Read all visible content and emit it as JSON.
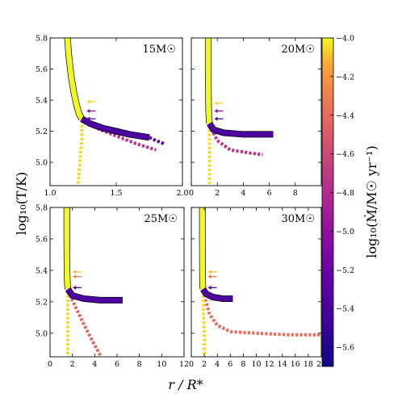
{
  "figure": {
    "ylabel": "log₁₀(T/K)",
    "xlabel": "r / R*",
    "colorbar": {
      "label": "log₁₀(Ṁ/M☉ yr⁻¹)",
      "colormap": "plasma",
      "range": [
        -5.7,
        -4.0
      ],
      "ticks": [
        -4.0,
        -4.2,
        -4.4,
        -4.6,
        -4.8,
        -5.0,
        -5.2,
        -5.4,
        -5.6
      ],
      "tick_labels": [
        "−4.0",
        "−4.2",
        "−4.4",
        "−4.6",
        "−4.8",
        "−5.0",
        "−5.2",
        "−5.4",
        "−5.6"
      ]
    }
  },
  "chart_data": [
    {
      "type": "line",
      "label": "15M☉",
      "xlim": [
        1.0,
        2.0
      ],
      "ylim": [
        4.85,
        5.8
      ],
      "xticks": [
        1.0,
        1.5,
        2.0
      ],
      "xtick_labels": [
        "1.0",
        "1.5",
        "2.0"
      ],
      "yticks": [
        5.0,
        5.2,
        5.4,
        5.6,
        5.8
      ],
      "ytick_labels": [
        "5.0",
        "5.2",
        "5.4",
        "5.6",
        "5.8"
      ],
      "series": [
        {
          "style": "solid-thick",
          "log_mdot": -4.0,
          "points": [
            [
              1.13,
              5.82
            ],
            [
              1.14,
              5.7
            ],
            [
              1.16,
              5.55
            ],
            [
              1.18,
              5.45
            ],
            [
              1.2,
              5.37
            ],
            [
              1.22,
              5.31
            ],
            [
              1.24,
              5.28
            ]
          ]
        },
        {
          "style": "solid-thick",
          "log_mdot": -5.4,
          "points": [
            [
              1.24,
              5.28
            ],
            [
              1.3,
              5.25
            ],
            [
              1.4,
              5.22
            ],
            [
              1.5,
              5.2
            ],
            [
              1.6,
              5.18
            ],
            [
              1.75,
              5.16
            ]
          ]
        },
        {
          "style": "dotted",
          "log_mdot": -5.4,
          "points": [
            [
              1.75,
              5.16
            ],
            [
              1.8,
              5.14
            ],
            [
              1.86,
              5.12
            ]
          ]
        },
        {
          "style": "dotted",
          "log_mdot": -4.75,
          "points": [
            [
              1.24,
              5.27
            ],
            [
              1.35,
              5.22
            ],
            [
              1.5,
              5.17
            ],
            [
              1.65,
              5.12
            ],
            [
              1.8,
              5.08
            ]
          ]
        },
        {
          "style": "dotted",
          "log_mdot": -4.05,
          "points": [
            [
              1.24,
              5.27
            ],
            [
              1.24,
              5.15
            ],
            [
              1.23,
              5.05
            ],
            [
              1.22,
              4.95
            ],
            [
              1.21,
              4.85
            ]
          ]
        }
      ],
      "arrows": [
        {
          "log_mdot": -4.05,
          "y": 5.39
        },
        {
          "log_mdot": -5.0,
          "y": 5.33
        },
        {
          "log_mdot": -5.4,
          "y": 5.28
        }
      ]
    },
    {
      "type": "line",
      "label": "20M☉",
      "xlim": [
        0.0,
        10.0
      ],
      "ylim": [
        4.85,
        5.8
      ],
      "xticks": [
        0,
        2,
        4,
        6,
        8
      ],
      "xtick_labels": [
        "0",
        "2",
        "4",
        "6",
        "8"
      ],
      "yticks": [
        5.0,
        5.2,
        5.4,
        5.6,
        5.8
      ],
      "ytick_labels": [
        "",
        "",
        "",
        "",
        ""
      ],
      "series": [
        {
          "style": "solid-thick",
          "log_mdot": -4.0,
          "points": [
            [
              1.3,
              5.82
            ],
            [
              1.3,
              5.6
            ],
            [
              1.32,
              5.4
            ],
            [
              1.35,
              5.3
            ],
            [
              1.4,
              5.25
            ]
          ]
        },
        {
          "style": "solid-thick",
          "log_mdot": -5.4,
          "points": [
            [
              1.4,
              5.25
            ],
            [
              1.7,
              5.21
            ],
            [
              2.5,
              5.19
            ],
            [
              4.0,
              5.18
            ],
            [
              6.3,
              5.18
            ]
          ]
        },
        {
          "style": "dotted",
          "log_mdot": -4.75,
          "points": [
            [
              1.4,
              5.24
            ],
            [
              2.0,
              5.14
            ],
            [
              3.0,
              5.08
            ],
            [
              4.5,
              5.06
            ],
            [
              5.5,
              5.05
            ]
          ]
        },
        {
          "style": "dotted",
          "log_mdot": -4.05,
          "points": [
            [
              1.4,
              5.24
            ],
            [
              1.4,
              5.1
            ],
            [
              1.4,
              5.0
            ],
            [
              1.4,
              4.85
            ]
          ]
        }
      ],
      "arrows": [
        {
          "log_mdot": -4.05,
          "y": 5.38
        },
        {
          "log_mdot": -5.0,
          "y": 5.33
        },
        {
          "log_mdot": -5.4,
          "y": 5.28
        }
      ]
    },
    {
      "type": "line",
      "label": "25M☉",
      "xlim": [
        0.0,
        12.0
      ],
      "ylim": [
        4.85,
        5.8
      ],
      "xticks": [
        0,
        2,
        4,
        6,
        8,
        10,
        12
      ],
      "xtick_labels": [
        "0",
        "2",
        "4",
        "6",
        "8",
        "10",
        "12"
      ],
      "yticks": [
        5.0,
        5.2,
        5.4,
        5.6,
        5.8
      ],
      "ytick_labels": [
        "5.0",
        "5.2",
        "5.4",
        "5.6",
        "5.8"
      ],
      "series": [
        {
          "style": "solid-thick",
          "log_mdot": -4.0,
          "points": [
            [
              1.5,
              5.82
            ],
            [
              1.5,
              5.6
            ],
            [
              1.52,
              5.4
            ],
            [
              1.55,
              5.32
            ],
            [
              1.6,
              5.28
            ]
          ]
        },
        {
          "style": "solid-thick",
          "log_mdot": -5.4,
          "points": [
            [
              1.6,
              5.28
            ],
            [
              2.0,
              5.24
            ],
            [
              3.0,
              5.22
            ],
            [
              4.5,
              5.21
            ],
            [
              6.5,
              5.21
            ]
          ]
        },
        {
          "style": "dotted",
          "log_mdot": -4.45,
          "points": [
            [
              1.6,
              5.27
            ],
            [
              2.2,
              5.18
            ],
            [
              3.0,
              5.06
            ],
            [
              3.8,
              4.95
            ],
            [
              4.5,
              4.86
            ]
          ]
        },
        {
          "style": "dotted",
          "log_mdot": -4.05,
          "points": [
            [
              1.6,
              5.27
            ],
            [
              1.6,
              5.1
            ],
            [
              1.6,
              5.0
            ],
            [
              1.6,
              4.85
            ]
          ]
        }
      ],
      "arrows": [
        {
          "log_mdot": -4.1,
          "y": 5.39
        },
        {
          "log_mdot": -4.3,
          "y": 5.36
        },
        {
          "log_mdot": -5.4,
          "y": 5.29
        }
      ]
    },
    {
      "type": "line",
      "label": "30M☉",
      "xlim": [
        0.0,
        20.0
      ],
      "ylim": [
        4.85,
        5.8
      ],
      "xticks": [
        0,
        2,
        4,
        6,
        8,
        10,
        12,
        14,
        16,
        18,
        20
      ],
      "xtick_labels": [
        "0",
        "2",
        "4",
        "6",
        "8",
        "10",
        "12",
        "14",
        "16",
        "18",
        "20"
      ],
      "yticks": [
        5.0,
        5.2,
        5.4,
        5.6,
        5.8
      ],
      "ytick_labels": [
        "",
        "",
        "",
        "",
        ""
      ],
      "series": [
        {
          "style": "solid-thick",
          "log_mdot": -4.0,
          "points": [
            [
              1.7,
              5.82
            ],
            [
              1.7,
              5.6
            ],
            [
              1.72,
              5.4
            ],
            [
              1.75,
              5.32
            ],
            [
              1.8,
              5.28
            ]
          ]
        },
        {
          "style": "solid-thick",
          "log_mdot": -5.4,
          "points": [
            [
              1.8,
              5.28
            ],
            [
              2.3,
              5.25
            ],
            [
              3.3,
              5.23
            ],
            [
              4.8,
              5.22
            ],
            [
              6.4,
              5.22
            ]
          ]
        },
        {
          "style": "dotted",
          "log_mdot": -4.4,
          "points": [
            [
              1.8,
              5.27
            ],
            [
              2.8,
              5.12
            ],
            [
              4.0,
              5.05
            ],
            [
              6.0,
              5.01
            ],
            [
              10.0,
              5.0
            ],
            [
              15.0,
              4.99
            ],
            [
              20.0,
              4.99
            ]
          ]
        },
        {
          "style": "dotted",
          "log_mdot": -4.05,
          "points": [
            [
              1.8,
              5.27
            ],
            [
              1.9,
              5.1
            ],
            [
              2.0,
              5.0
            ],
            [
              2.0,
              4.85
            ]
          ]
        }
      ],
      "arrows": [
        {
          "log_mdot": -4.1,
          "y": 5.39
        },
        {
          "log_mdot": -4.35,
          "y": 5.36
        },
        {
          "log_mdot": -5.4,
          "y": 5.29
        }
      ]
    }
  ]
}
